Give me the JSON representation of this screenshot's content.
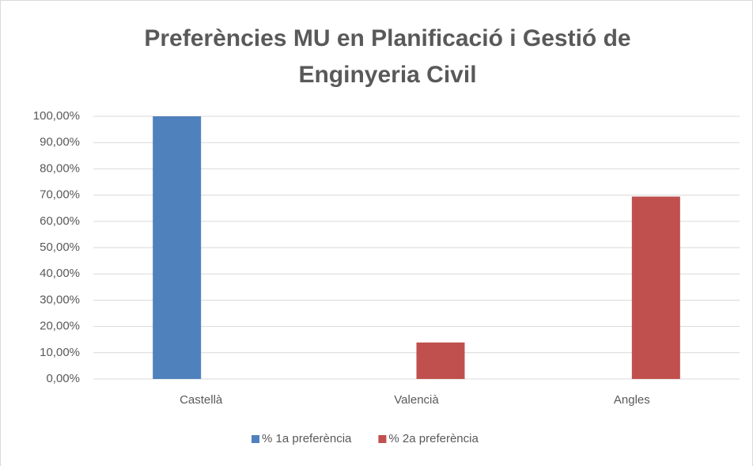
{
  "chart_data": {
    "type": "bar",
    "title": [
      "Preferències MU en Planificació i Gestió de",
      "Enginyeria Civil"
    ],
    "categories": [
      "Castellà",
      "Valencià",
      "Angles"
    ],
    "series": [
      {
        "name": "% 1a preferència",
        "color": "#4f81bd",
        "values": [
          100,
          0,
          0
        ]
      },
      {
        "name": "% 2a preferència",
        "color": "#c0504d",
        "values": [
          0,
          13.89,
          69.44
        ]
      }
    ],
    "ylim": [
      0,
      100
    ],
    "yticks": [
      {
        "value": 0,
        "label": "0,00%"
      },
      {
        "value": 10,
        "label": "10,00%"
      },
      {
        "value": 20,
        "label": "20,00%"
      },
      {
        "value": 30,
        "label": "30,00%"
      },
      {
        "value": 40,
        "label": "40,00%"
      },
      {
        "value": 50,
        "label": "50,00%"
      },
      {
        "value": 60,
        "label": "60,00%"
      },
      {
        "value": 70,
        "label": "70,00%"
      },
      {
        "value": 80,
        "label": "80,00%"
      },
      {
        "value": 90,
        "label": "90,00%"
      },
      {
        "value": 100,
        "label": "100,00%"
      }
    ],
    "grid": true,
    "legend": "bottom"
  }
}
